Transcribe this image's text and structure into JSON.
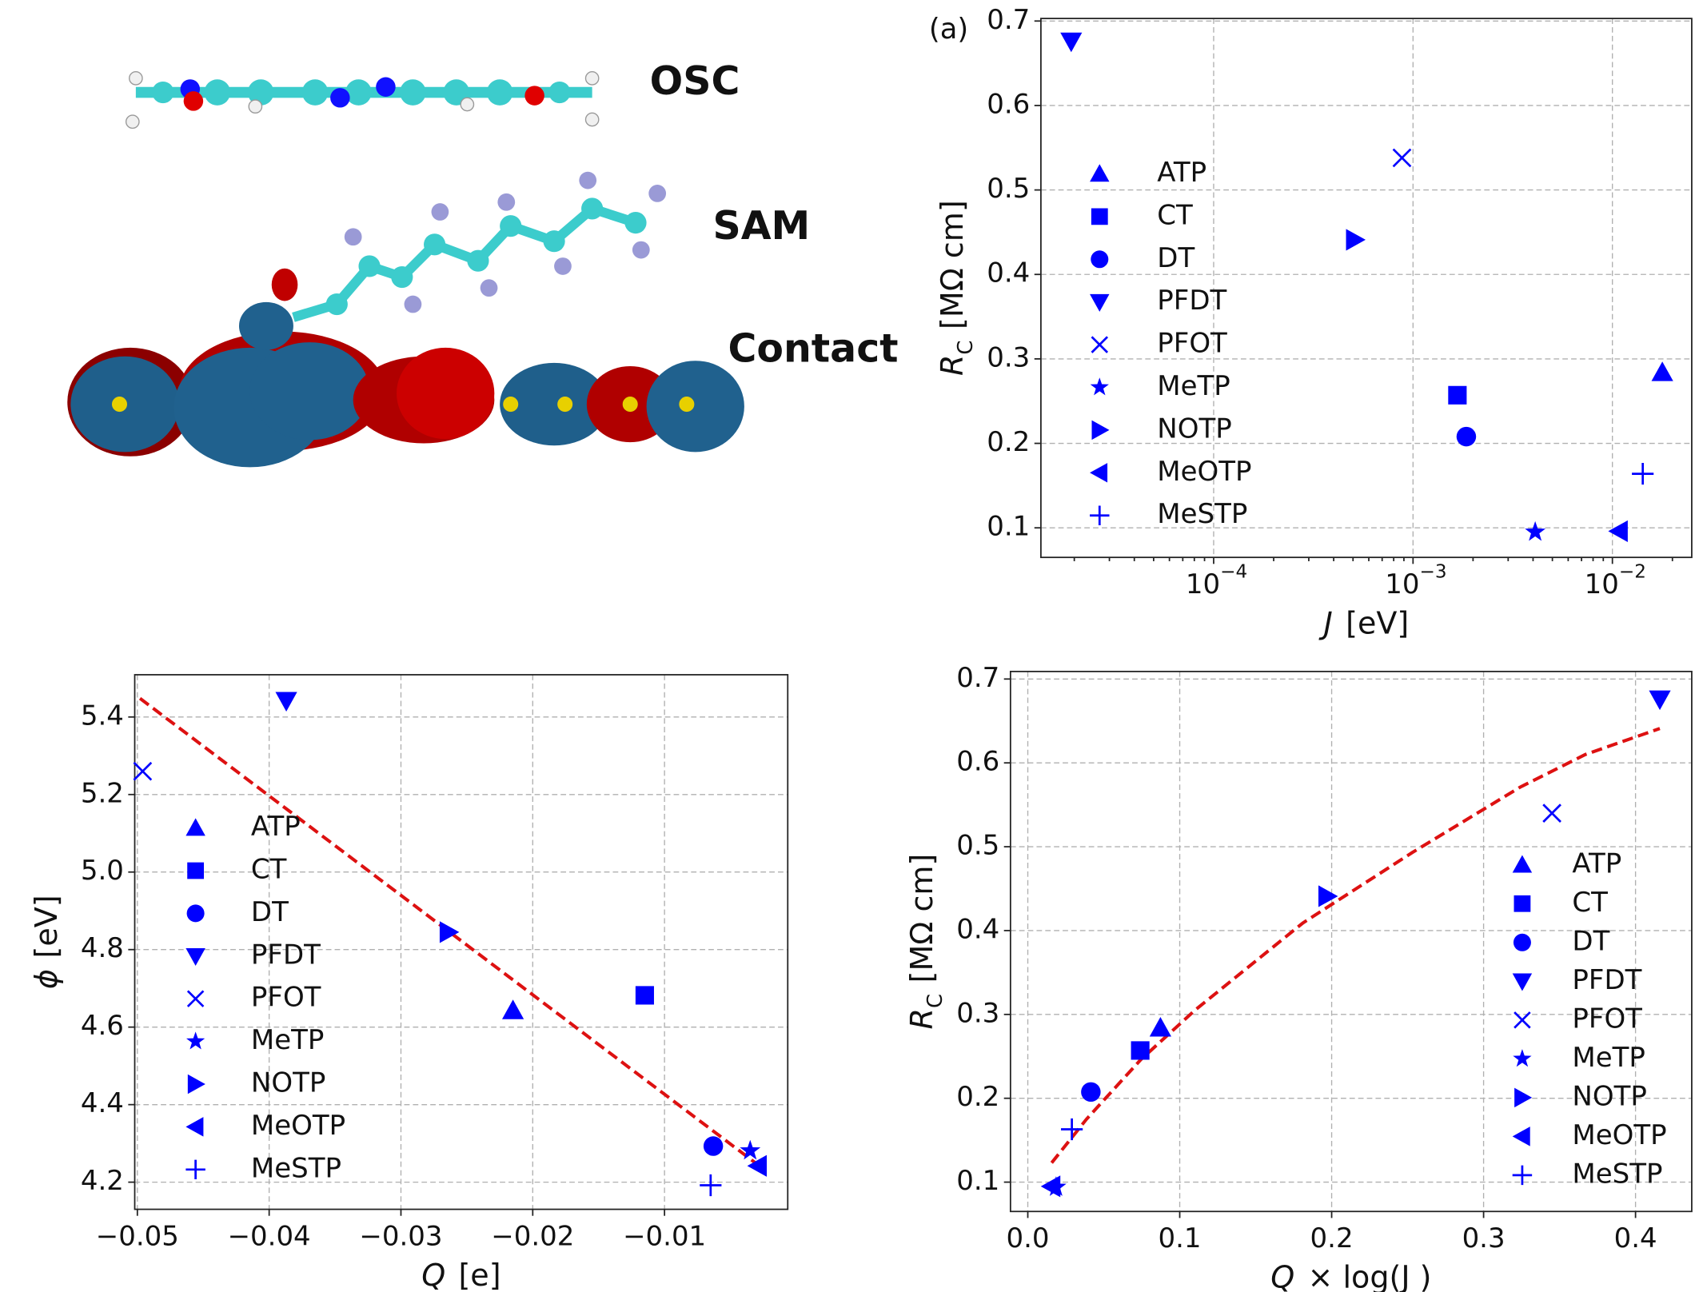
{
  "illustration": {
    "labels": [
      "OSC",
      "SAM",
      "Contact"
    ]
  },
  "chart_data": [
    {
      "type": "scatter",
      "annotation": "(a)",
      "x_label": {
        "symbol": "J",
        "unit": "[eV]"
      },
      "y_label": {
        "symbol": "R",
        "subscript": "C",
        "unit": "[MΩ cm]"
      },
      "xscale": "log",
      "xlim": [
        1.36e-05,
        0.025
      ],
      "ylim": [
        0.065,
        0.703
      ],
      "xticks": [
        {
          "value": 0.0001,
          "label": "10",
          "exponent": "−4"
        },
        {
          "value": 0.001,
          "label": "10",
          "exponent": "−3"
        },
        {
          "value": 0.01,
          "label": "10",
          "exponent": "−2"
        }
      ],
      "yticks": [
        0.1,
        0.2,
        0.3,
        0.4,
        0.5,
        0.6,
        0.7
      ],
      "grid": true,
      "legend": "center left",
      "series": [
        {
          "name": "ATP",
          "marker": "triangle-up",
          "color": "#0000ff",
          "x": [
            0.0178
          ],
          "values": [
            0.284
          ]
        },
        {
          "name": "CT",
          "marker": "square",
          "color": "#0000ff",
          "x": [
            0.00167
          ],
          "values": [
            0.257
          ]
        },
        {
          "name": "DT",
          "marker": "circle",
          "color": "#0000ff",
          "x": [
            0.00185
          ],
          "values": [
            0.208
          ]
        },
        {
          "name": "PFDT",
          "marker": "triangle-down",
          "color": "#0000ff",
          "x": [
            1.93e-05
          ],
          "values": [
            0.676
          ]
        },
        {
          "name": "PFOT",
          "marker": "x",
          "color": "#0000ff",
          "x": [
            0.00088
          ],
          "values": [
            0.538
          ]
        },
        {
          "name": "MeTP",
          "marker": "star",
          "color": "#0000ff",
          "x": [
            0.0041
          ],
          "values": [
            0.095
          ]
        },
        {
          "name": "NOTP",
          "marker": "triangle-right",
          "color": "#0000ff",
          "x": [
            0.00051
          ],
          "values": [
            0.441
          ]
        },
        {
          "name": "MeOTP",
          "marker": "triangle-left",
          "color": "#0000ff",
          "x": [
            0.0108
          ],
          "values": [
            0.096
          ]
        },
        {
          "name": "MeSTP",
          "marker": "plus",
          "color": "#0000ff",
          "x": [
            0.0142
          ],
          "values": [
            0.164
          ]
        }
      ]
    },
    {
      "type": "scatter",
      "x_label": {
        "symbol": "Q",
        "unit": "[e]"
      },
      "y_label": {
        "symbol": "ϕ",
        "unit": "[eV]"
      },
      "xlim": [
        -0.0502,
        -0.00065
      ],
      "ylim": [
        4.13,
        5.509
      ],
      "xticks": [
        {
          "value": -0.05,
          "label": "−0.05"
        },
        {
          "value": -0.04,
          "label": "−0.04"
        },
        {
          "value": -0.03,
          "label": "−0.03"
        },
        {
          "value": -0.02,
          "label": "−0.02"
        },
        {
          "value": -0.01,
          "label": "−0.01"
        }
      ],
      "yticks": [
        4.2,
        4.4,
        4.6,
        4.8,
        {
          "value": 5,
          "label": "5.0"
        },
        5.2,
        5.4
      ],
      "grid": true,
      "legend": "center left",
      "fit": {
        "color": "#dd1111",
        "x": [
          -0.0498,
          -0.0028
        ],
        "values": [
          5.448,
          4.242
        ]
      },
      "series": [
        {
          "name": "ATP",
          "marker": "triangle-up",
          "color": "#0000ff",
          "x": [
            -0.0215
          ],
          "values": [
            4.643
          ]
        },
        {
          "name": "CT",
          "marker": "square",
          "color": "#0000ff",
          "x": [
            -0.0115
          ],
          "values": [
            4.682
          ]
        },
        {
          "name": "DT",
          "marker": "circle",
          "color": "#0000ff",
          "x": [
            -0.0063
          ],
          "values": [
            4.293
          ]
        },
        {
          "name": "PFDT",
          "marker": "triangle-down",
          "color": "#0000ff",
          "x": [
            -0.0387
          ],
          "values": [
            5.442
          ]
        },
        {
          "name": "PFOT",
          "marker": "x",
          "color": "#0000ff",
          "x": [
            -0.0496
          ],
          "values": [
            5.26
          ]
        },
        {
          "name": "MeTP",
          "marker": "star",
          "color": "#0000ff",
          "x": [
            -0.0035
          ],
          "values": [
            4.281
          ]
        },
        {
          "name": "NOTP",
          "marker": "triangle-right",
          "color": "#0000ff",
          "x": [
            -0.0264
          ],
          "values": [
            4.845
          ]
        },
        {
          "name": "MeOTP",
          "marker": "triangle-left",
          "color": "#0000ff",
          "x": [
            -0.0029
          ],
          "values": [
            4.242
          ]
        },
        {
          "name": "MeSTP",
          "marker": "plus",
          "color": "#0000ff",
          "x": [
            -0.0065
          ],
          "values": [
            4.192
          ]
        }
      ]
    },
    {
      "type": "scatter",
      "x_label": {
        "symbol": "Q",
        "unit": "× log(J )"
      },
      "y_label": {
        "symbol": "R",
        "subscript": "C",
        "unit": "[MΩ cm]"
      },
      "xlim": [
        -0.0114,
        0.437
      ],
      "ylim": [
        0.065,
        0.709
      ],
      "xticks": [
        {
          "value": 0,
          "label": "0.0"
        },
        0.1,
        0.2,
        0.3,
        0.4
      ],
      "yticks": [
        0.1,
        0.2,
        0.3,
        0.4,
        0.5,
        0.6,
        0.7
      ],
      "grid": true,
      "legend": "center right",
      "fit": {
        "color": "#dd1111",
        "x": [
          0.0157,
          0.0386,
          0.0743,
          0.11,
          0.181,
          0.253,
          0.324,
          0.367,
          0.416
        ],
        "values": [
          0.123,
          0.175,
          0.246,
          0.305,
          0.409,
          0.493,
          0.571,
          0.61,
          0.641
        ]
      },
      "series": [
        {
          "name": "ATP",
          "marker": "triangle-up",
          "color": "#0000ff",
          "x": [
            0.0873
          ],
          "values": [
            0.284
          ]
        },
        {
          "name": "CT",
          "marker": "square",
          "color": "#0000ff",
          "x": [
            0.074
          ],
          "values": [
            0.257
          ]
        },
        {
          "name": "DT",
          "marker": "circle",
          "color": "#0000ff",
          "x": [
            0.0415
          ],
          "values": [
            0.2075
          ]
        },
        {
          "name": "PFDT",
          "marker": "triangle-down",
          "color": "#0000ff",
          "x": [
            0.416
          ],
          "values": [
            0.676
          ]
        },
        {
          "name": "PFOT",
          "marker": "x",
          "color": "#0000ff",
          "x": [
            0.345
          ],
          "values": [
            0.54
          ]
        },
        {
          "name": "MeTP",
          "marker": "star",
          "color": "#0000ff",
          "x": [
            0.0186
          ],
          "values": [
            0.094
          ]
        },
        {
          "name": "NOTP",
          "marker": "triangle-right",
          "color": "#0000ff",
          "x": [
            0.197
          ],
          "values": [
            0.441
          ]
        },
        {
          "name": "MeOTP",
          "marker": "triangle-left",
          "color": "#0000ff",
          "x": [
            0.0157
          ],
          "values": [
            0.095
          ]
        },
        {
          "name": "MeSTP",
          "marker": "plus",
          "color": "#0000ff",
          "x": [
            0.029
          ],
          "values": [
            0.163
          ]
        }
      ]
    }
  ]
}
